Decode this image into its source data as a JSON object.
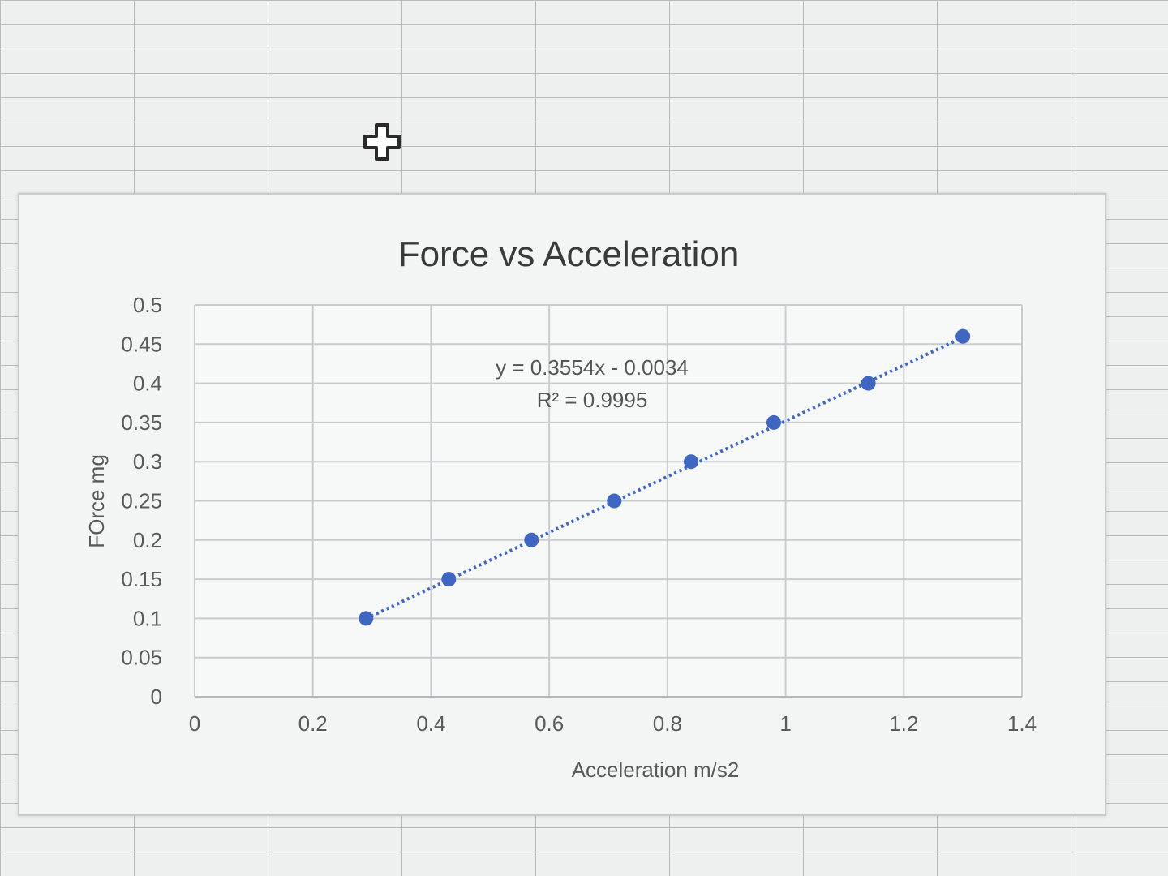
{
  "cursor_icon": "move-cross-cursor-icon",
  "chart_data": {
    "type": "scatter",
    "title": "Force vs Acceleration",
    "xlabel": "Acceleration m/s2",
    "ylabel": "FOrce mg",
    "xlim": [
      0,
      1.4
    ],
    "ylim": [
      0,
      0.5
    ],
    "x_ticks": [
      "0",
      "0.2",
      "0.4",
      "0.6",
      "0.8",
      "1",
      "1.2",
      "1.4"
    ],
    "y_ticks": [
      "0",
      "0.05",
      "0.1",
      "0.15",
      "0.2",
      "0.25",
      "0.3",
      "0.35",
      "0.4",
      "0.45",
      "0.5"
    ],
    "grid": true,
    "series": [
      {
        "x": [
          0.29,
          0.43,
          0.57,
          0.71,
          0.84,
          0.98,
          1.14,
          1.3
        ],
        "y": [
          0.1,
          0.15,
          0.2,
          0.25,
          0.3,
          0.35,
          0.4,
          0.46
        ],
        "color": "#3f67c2"
      }
    ],
    "trendline": {
      "type": "linear",
      "slope": 0.3554,
      "intercept": -0.0034,
      "equation": "y = 0.3554x - 0.0034",
      "r_squared": "R² = 0.9995",
      "style": "dotted",
      "color": "#3f67c2"
    }
  }
}
